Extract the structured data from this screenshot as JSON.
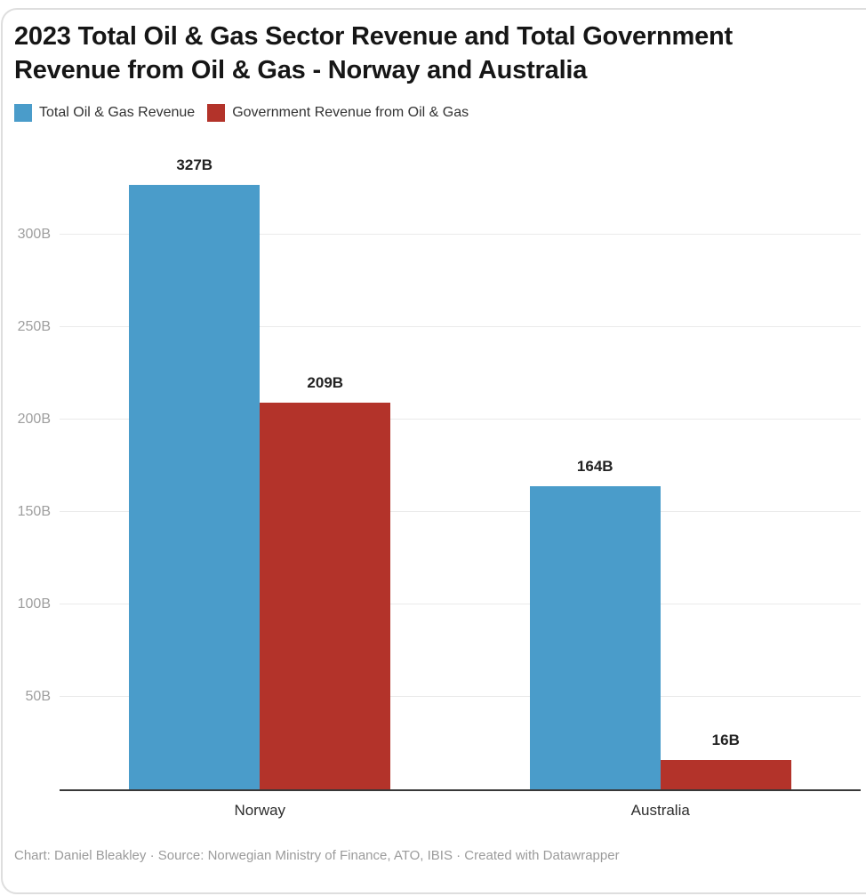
{
  "header": {
    "title_lines": [
      "2023 Total Oil & Gas Sector Revenue and Total Government",
      "Revenue from Oil & Gas - Norway and Australia"
    ]
  },
  "chart_data": {
    "type": "bar",
    "title": "2023 Total Oil & Gas Sector Revenue and Total Government Revenue from Oil & Gas - Norway and Australia",
    "categories": [
      "Norway",
      "Australia"
    ],
    "series": [
      {
        "name": "Total Oil & Gas Revenue",
        "color": "#4a9cca",
        "values": [
          327,
          164
        ]
      },
      {
        "name": "Government Revenue from Oil & Gas",
        "color": "#b3332a",
        "values": [
          209,
          16
        ]
      }
    ],
    "unit": "B",
    "value_labels": [
      [
        "327B",
        "164B"
      ],
      [
        "209B",
        "16B"
      ]
    ],
    "yticks": [
      50,
      100,
      150,
      200,
      250,
      300
    ],
    "ytick_labels": [
      "50B",
      "100B",
      "150B",
      "200B",
      "250B",
      "300B"
    ],
    "ylim": [
      0,
      346
    ],
    "grid": true,
    "legend_position": "top",
    "colors": {
      "blue": "#4a9cca",
      "red": "#b3332a",
      "gridline": "#eaeaea",
      "axis": "#383838",
      "tick_text": "#9e9e9e"
    }
  },
  "footer": {
    "text": "Chart: Daniel Bleakley · Source: Norwegian Ministry of Finance, ATO, IBIS · Created with Datawrapper"
  }
}
